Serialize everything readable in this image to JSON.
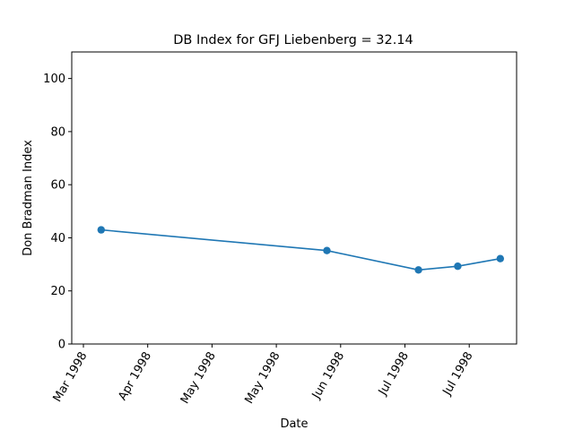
{
  "chart_data": {
    "type": "line",
    "title": "DB Index for GFJ Liebenberg = 32.14",
    "xlabel": "Date",
    "ylabel": "Don Bradman Index",
    "x_ticks": [
      "Mar 1998",
      "Apr 1998",
      "May 1998",
      "May 1998",
      "Jun 1998",
      "Jul 1998",
      "Jul 1998"
    ],
    "y_ticks": [
      0,
      20,
      40,
      60,
      80,
      100
    ],
    "ylim": [
      0,
      110
    ],
    "grid": false,
    "series": [
      {
        "color": "#1f77b4",
        "x": [
          "1998-03-06",
          "1998-05-14",
          "1998-06-11",
          "1998-06-23",
          "1998-07-06"
        ],
        "y": [
          43.0,
          35.2,
          27.9,
          29.3,
          32.14
        ]
      }
    ]
  }
}
